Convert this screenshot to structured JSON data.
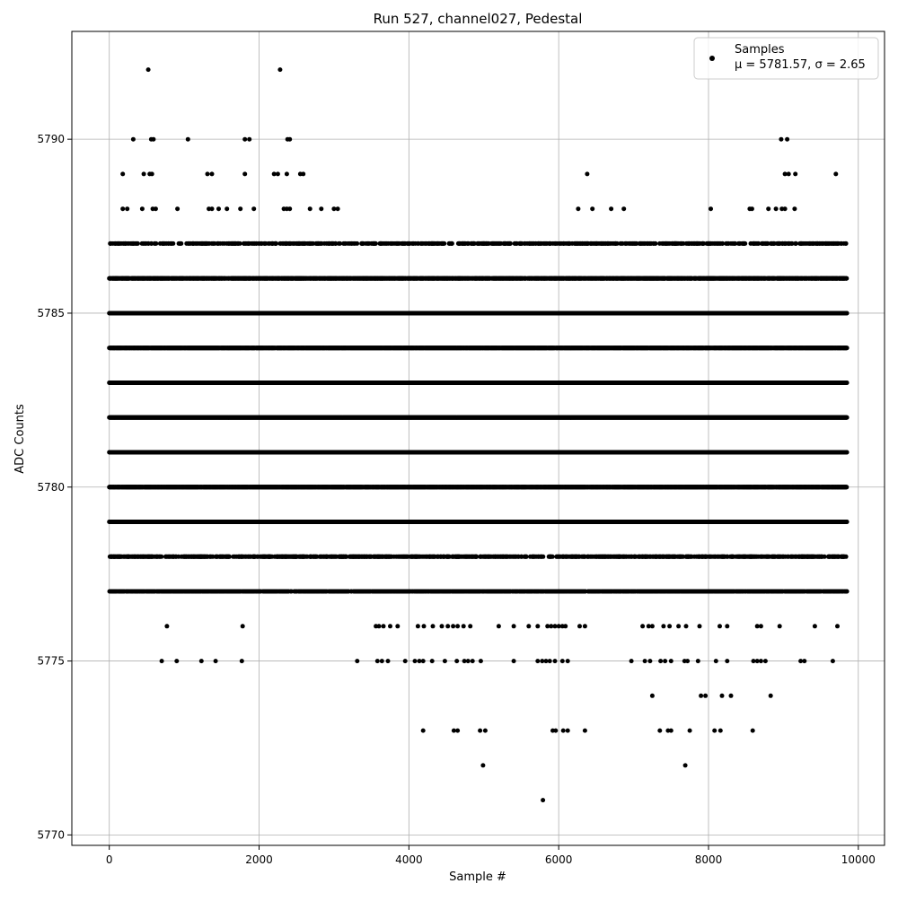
{
  "chart_data": {
    "type": "scatter",
    "title": "Run 527, channel027, Pedestal",
    "xlabel": "Sample #",
    "ylabel": "ADC Counts",
    "xlim": [
      -500,
      10350
    ],
    "ylim": [
      5769.7,
      5793.1
    ],
    "xticks": [
      0,
      2000,
      4000,
      6000,
      8000,
      10000
    ],
    "yticks": [
      5770,
      5775,
      5780,
      5785,
      5790
    ],
    "grid": true,
    "legend": {
      "position": "top-right",
      "label": "Samples",
      "stats": "μ = 5781.57, σ = 2.65"
    },
    "series": [
      {
        "name": "Samples",
        "color": "#000000",
        "dense_rows": [
          {
            "y": 5777,
            "x_start": 0,
            "x_end": 9850,
            "density": 0.55
          },
          {
            "y": 5778,
            "x_start": 0,
            "x_end": 9850,
            "density": 0.35
          },
          {
            "y": 5779,
            "x_start": 0,
            "x_end": 9850,
            "density": 0.9
          },
          {
            "y": 5780,
            "x_start": 0,
            "x_end": 9850,
            "density": 0.9
          },
          {
            "y": 5781,
            "x_start": 0,
            "x_end": 9850,
            "density": 1.0
          },
          {
            "y": 5782,
            "x_start": 0,
            "x_end": 9850,
            "density": 1.0
          },
          {
            "y": 5783,
            "x_start": 0,
            "x_end": 9850,
            "density": 1.0
          },
          {
            "y": 5784,
            "x_start": 0,
            "x_end": 9850,
            "density": 0.95
          },
          {
            "y": 5785,
            "x_start": 0,
            "x_end": 9850,
            "density": 0.9
          },
          {
            "y": 5786,
            "x_start": 0,
            "x_end": 9850,
            "density": 0.75
          },
          {
            "y": 5787,
            "x_start": 0,
            "x_end": 9850,
            "density": 0.3
          }
        ],
        "points": [
          [
            520,
            5792
          ],
          [
            2280,
            5792
          ],
          [
            320,
            5790
          ],
          [
            560,
            5790
          ],
          [
            590,
            5790
          ],
          [
            1050,
            5790
          ],
          [
            1810,
            5790
          ],
          [
            1870,
            5790
          ],
          [
            2380,
            5790
          ],
          [
            2410,
            5790
          ],
          [
            8970,
            5790
          ],
          [
            9050,
            5790
          ],
          [
            180,
            5789
          ],
          [
            460,
            5789
          ],
          [
            540,
            5789
          ],
          [
            570,
            5789
          ],
          [
            1310,
            5789
          ],
          [
            1370,
            5789
          ],
          [
            1810,
            5789
          ],
          [
            2200,
            5789
          ],
          [
            2250,
            5789
          ],
          [
            2370,
            5789
          ],
          [
            2550,
            5789
          ],
          [
            2590,
            5789
          ],
          [
            6380,
            5789
          ],
          [
            9020,
            5789
          ],
          [
            9070,
            5789
          ],
          [
            9160,
            5789
          ],
          [
            9700,
            5789
          ],
          [
            180,
            5788
          ],
          [
            240,
            5788
          ],
          [
            440,
            5788
          ],
          [
            580,
            5788
          ],
          [
            620,
            5788
          ],
          [
            910,
            5788
          ],
          [
            1330,
            5788
          ],
          [
            1370,
            5788
          ],
          [
            1460,
            5788
          ],
          [
            1570,
            5788
          ],
          [
            1750,
            5788
          ],
          [
            1930,
            5788
          ],
          [
            2330,
            5788
          ],
          [
            2370,
            5788
          ],
          [
            2410,
            5788
          ],
          [
            2680,
            5788
          ],
          [
            2830,
            5788
          ],
          [
            3000,
            5788
          ],
          [
            3050,
            5788
          ],
          [
            6260,
            5788
          ],
          [
            6450,
            5788
          ],
          [
            6700,
            5788
          ],
          [
            6870,
            5788
          ],
          [
            8030,
            5788
          ],
          [
            8550,
            5788
          ],
          [
            8580,
            5788
          ],
          [
            8800,
            5788
          ],
          [
            8900,
            5788
          ],
          [
            8980,
            5788
          ],
          [
            9020,
            5788
          ],
          [
            9150,
            5788
          ],
          [
            1780,
            5776
          ],
          [
            3560,
            5776
          ],
          [
            3600,
            5776
          ],
          [
            3660,
            5776
          ],
          [
            3750,
            5776
          ],
          [
            3850,
            5776
          ],
          [
            4120,
            5776
          ],
          [
            4200,
            5776
          ],
          [
            4320,
            5776
          ],
          [
            4440,
            5776
          ],
          [
            4520,
            5776
          ],
          [
            4590,
            5776
          ],
          [
            4650,
            5776
          ],
          [
            4730,
            5776
          ],
          [
            4820,
            5776
          ],
          [
            5200,
            5776
          ],
          [
            5400,
            5776
          ],
          [
            5600,
            5776
          ],
          [
            5720,
            5776
          ],
          [
            5850,
            5776
          ],
          [
            5900,
            5776
          ],
          [
            5950,
            5776
          ],
          [
            6000,
            5776
          ],
          [
            6050,
            5776
          ],
          [
            6090,
            5776
          ],
          [
            6280,
            5776
          ],
          [
            6350,
            5776
          ],
          [
            7120,
            5776
          ],
          [
            7200,
            5776
          ],
          [
            7250,
            5776
          ],
          [
            7400,
            5776
          ],
          [
            7480,
            5776
          ],
          [
            7600,
            5776
          ],
          [
            7700,
            5776
          ],
          [
            7880,
            5776
          ],
          [
            8150,
            5776
          ],
          [
            8250,
            5776
          ],
          [
            8650,
            5776
          ],
          [
            8700,
            5776
          ],
          [
            8950,
            5776
          ],
          [
            9420,
            5776
          ],
          [
            9720,
            5776
          ],
          [
            770,
            5776
          ],
          [
            700,
            5775
          ],
          [
            900,
            5775
          ],
          [
            1230,
            5775
          ],
          [
            1420,
            5775
          ],
          [
            1770,
            5775
          ],
          [
            3310,
            5775
          ],
          [
            3580,
            5775
          ],
          [
            3640,
            5775
          ],
          [
            3720,
            5775
          ],
          [
            3950,
            5775
          ],
          [
            4080,
            5775
          ],
          [
            4140,
            5775
          ],
          [
            4190,
            5775
          ],
          [
            4310,
            5775
          ],
          [
            4480,
            5775
          ],
          [
            4640,
            5775
          ],
          [
            4740,
            5775
          ],
          [
            4790,
            5775
          ],
          [
            4850,
            5775
          ],
          [
            4960,
            5775
          ],
          [
            5400,
            5775
          ],
          [
            5720,
            5775
          ],
          [
            5780,
            5775
          ],
          [
            5830,
            5775
          ],
          [
            5880,
            5775
          ],
          [
            5950,
            5775
          ],
          [
            6050,
            5775
          ],
          [
            6120,
            5775
          ],
          [
            6970,
            5775
          ],
          [
            7150,
            5775
          ],
          [
            7220,
            5775
          ],
          [
            7360,
            5775
          ],
          [
            7420,
            5775
          ],
          [
            7500,
            5775
          ],
          [
            7680,
            5775
          ],
          [
            7720,
            5775
          ],
          [
            7860,
            5775
          ],
          [
            8100,
            5775
          ],
          [
            8250,
            5775
          ],
          [
            8600,
            5775
          ],
          [
            8650,
            5775
          ],
          [
            8700,
            5775
          ],
          [
            8760,
            5775
          ],
          [
            9230,
            5775
          ],
          [
            9280,
            5775
          ],
          [
            9660,
            5775
          ],
          [
            7250,
            5774
          ],
          [
            7900,
            5774
          ],
          [
            7960,
            5774
          ],
          [
            8180,
            5774
          ],
          [
            8300,
            5774
          ],
          [
            8830,
            5774
          ],
          [
            4190,
            5773
          ],
          [
            4600,
            5773
          ],
          [
            4650,
            5773
          ],
          [
            4950,
            5773
          ],
          [
            5020,
            5773
          ],
          [
            5920,
            5773
          ],
          [
            5960,
            5773
          ],
          [
            6060,
            5773
          ],
          [
            6120,
            5773
          ],
          [
            6350,
            5773
          ],
          [
            7350,
            5773
          ],
          [
            7460,
            5773
          ],
          [
            7500,
            5773
          ],
          [
            7750,
            5773
          ],
          [
            8080,
            5773
          ],
          [
            8160,
            5773
          ],
          [
            8590,
            5773
          ],
          [
            4990,
            5772
          ],
          [
            7690,
            5772
          ],
          [
            5790,
            5771
          ]
        ]
      }
    ]
  }
}
